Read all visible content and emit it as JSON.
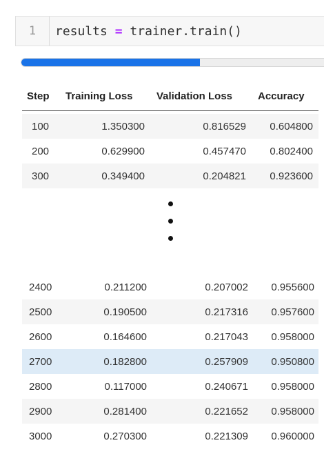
{
  "code_cell": {
    "line_number": "1",
    "code_var": "results",
    "code_op": "=",
    "code_call": "trainer.train()"
  },
  "progress": {
    "fraction": 0.59,
    "color": "#1a73e8"
  },
  "table": {
    "headers": [
      "Step",
      "Training Loss",
      "Validation Loss",
      "Accuracy"
    ],
    "top_rows": [
      [
        "100",
        "1.350300",
        "0.816529",
        "0.604800"
      ],
      [
        "200",
        "0.629900",
        "0.457470",
        "0.802400"
      ],
      [
        "300",
        "0.349400",
        "0.204821",
        "0.923600"
      ]
    ],
    "bottom_rows": [
      [
        "2400",
        "0.211200",
        "0.207002",
        "0.955600"
      ],
      [
        "2500",
        "0.190500",
        "0.217316",
        "0.957600"
      ],
      [
        "2600",
        "0.164600",
        "0.217043",
        "0.958000"
      ],
      [
        "2700",
        "0.182800",
        "0.257909",
        "0.950800"
      ],
      [
        "2800",
        "0.117000",
        "0.240671",
        "0.958000"
      ],
      [
        "2900",
        "0.281400",
        "0.221652",
        "0.958000"
      ],
      [
        "3000",
        "0.270300",
        "0.221309",
        "0.960000"
      ]
    ],
    "highlight_color": "#ddebf7"
  }
}
